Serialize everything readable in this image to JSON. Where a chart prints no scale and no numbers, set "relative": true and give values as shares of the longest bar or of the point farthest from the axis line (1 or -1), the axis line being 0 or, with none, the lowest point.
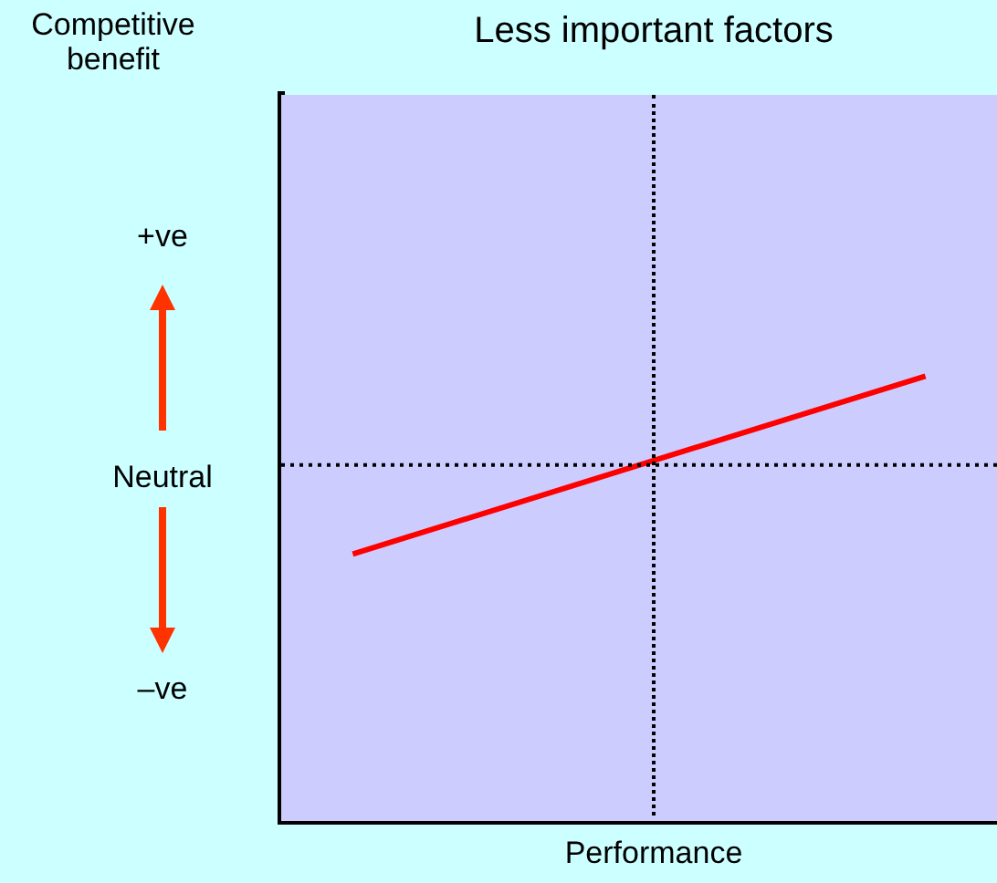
{
  "chart_data": {
    "type": "line",
    "title": "Less important factors",
    "xlabel": "Performance",
    "categories": [
      null,
      null,
      null,
      null,
      null,
      null,
      null,
      null,
      null,
      null,
      null
    ],
    "series": [
      {
        "color": "#ff0000",
        "values": [
          null,
          0.6,
          null,
          null,
          null,
          null,
          null,
          null,
          null,
          1,
          null
        ]
      }
    ],
    "relative": true,
    "grid": false,
    "legend": false,
    "marker": "none",
    "line_style": "solid",
    "ref_lines": [
      {
        "axis": "y",
        "value": 0.8,
        "color": "#000000",
        "line_style": "dotted"
      }
    ],
    "annotations": [
      "Competitive\nbenefit",
      "+ve",
      "Neutral",
      "–ve"
    ]
  }
}
